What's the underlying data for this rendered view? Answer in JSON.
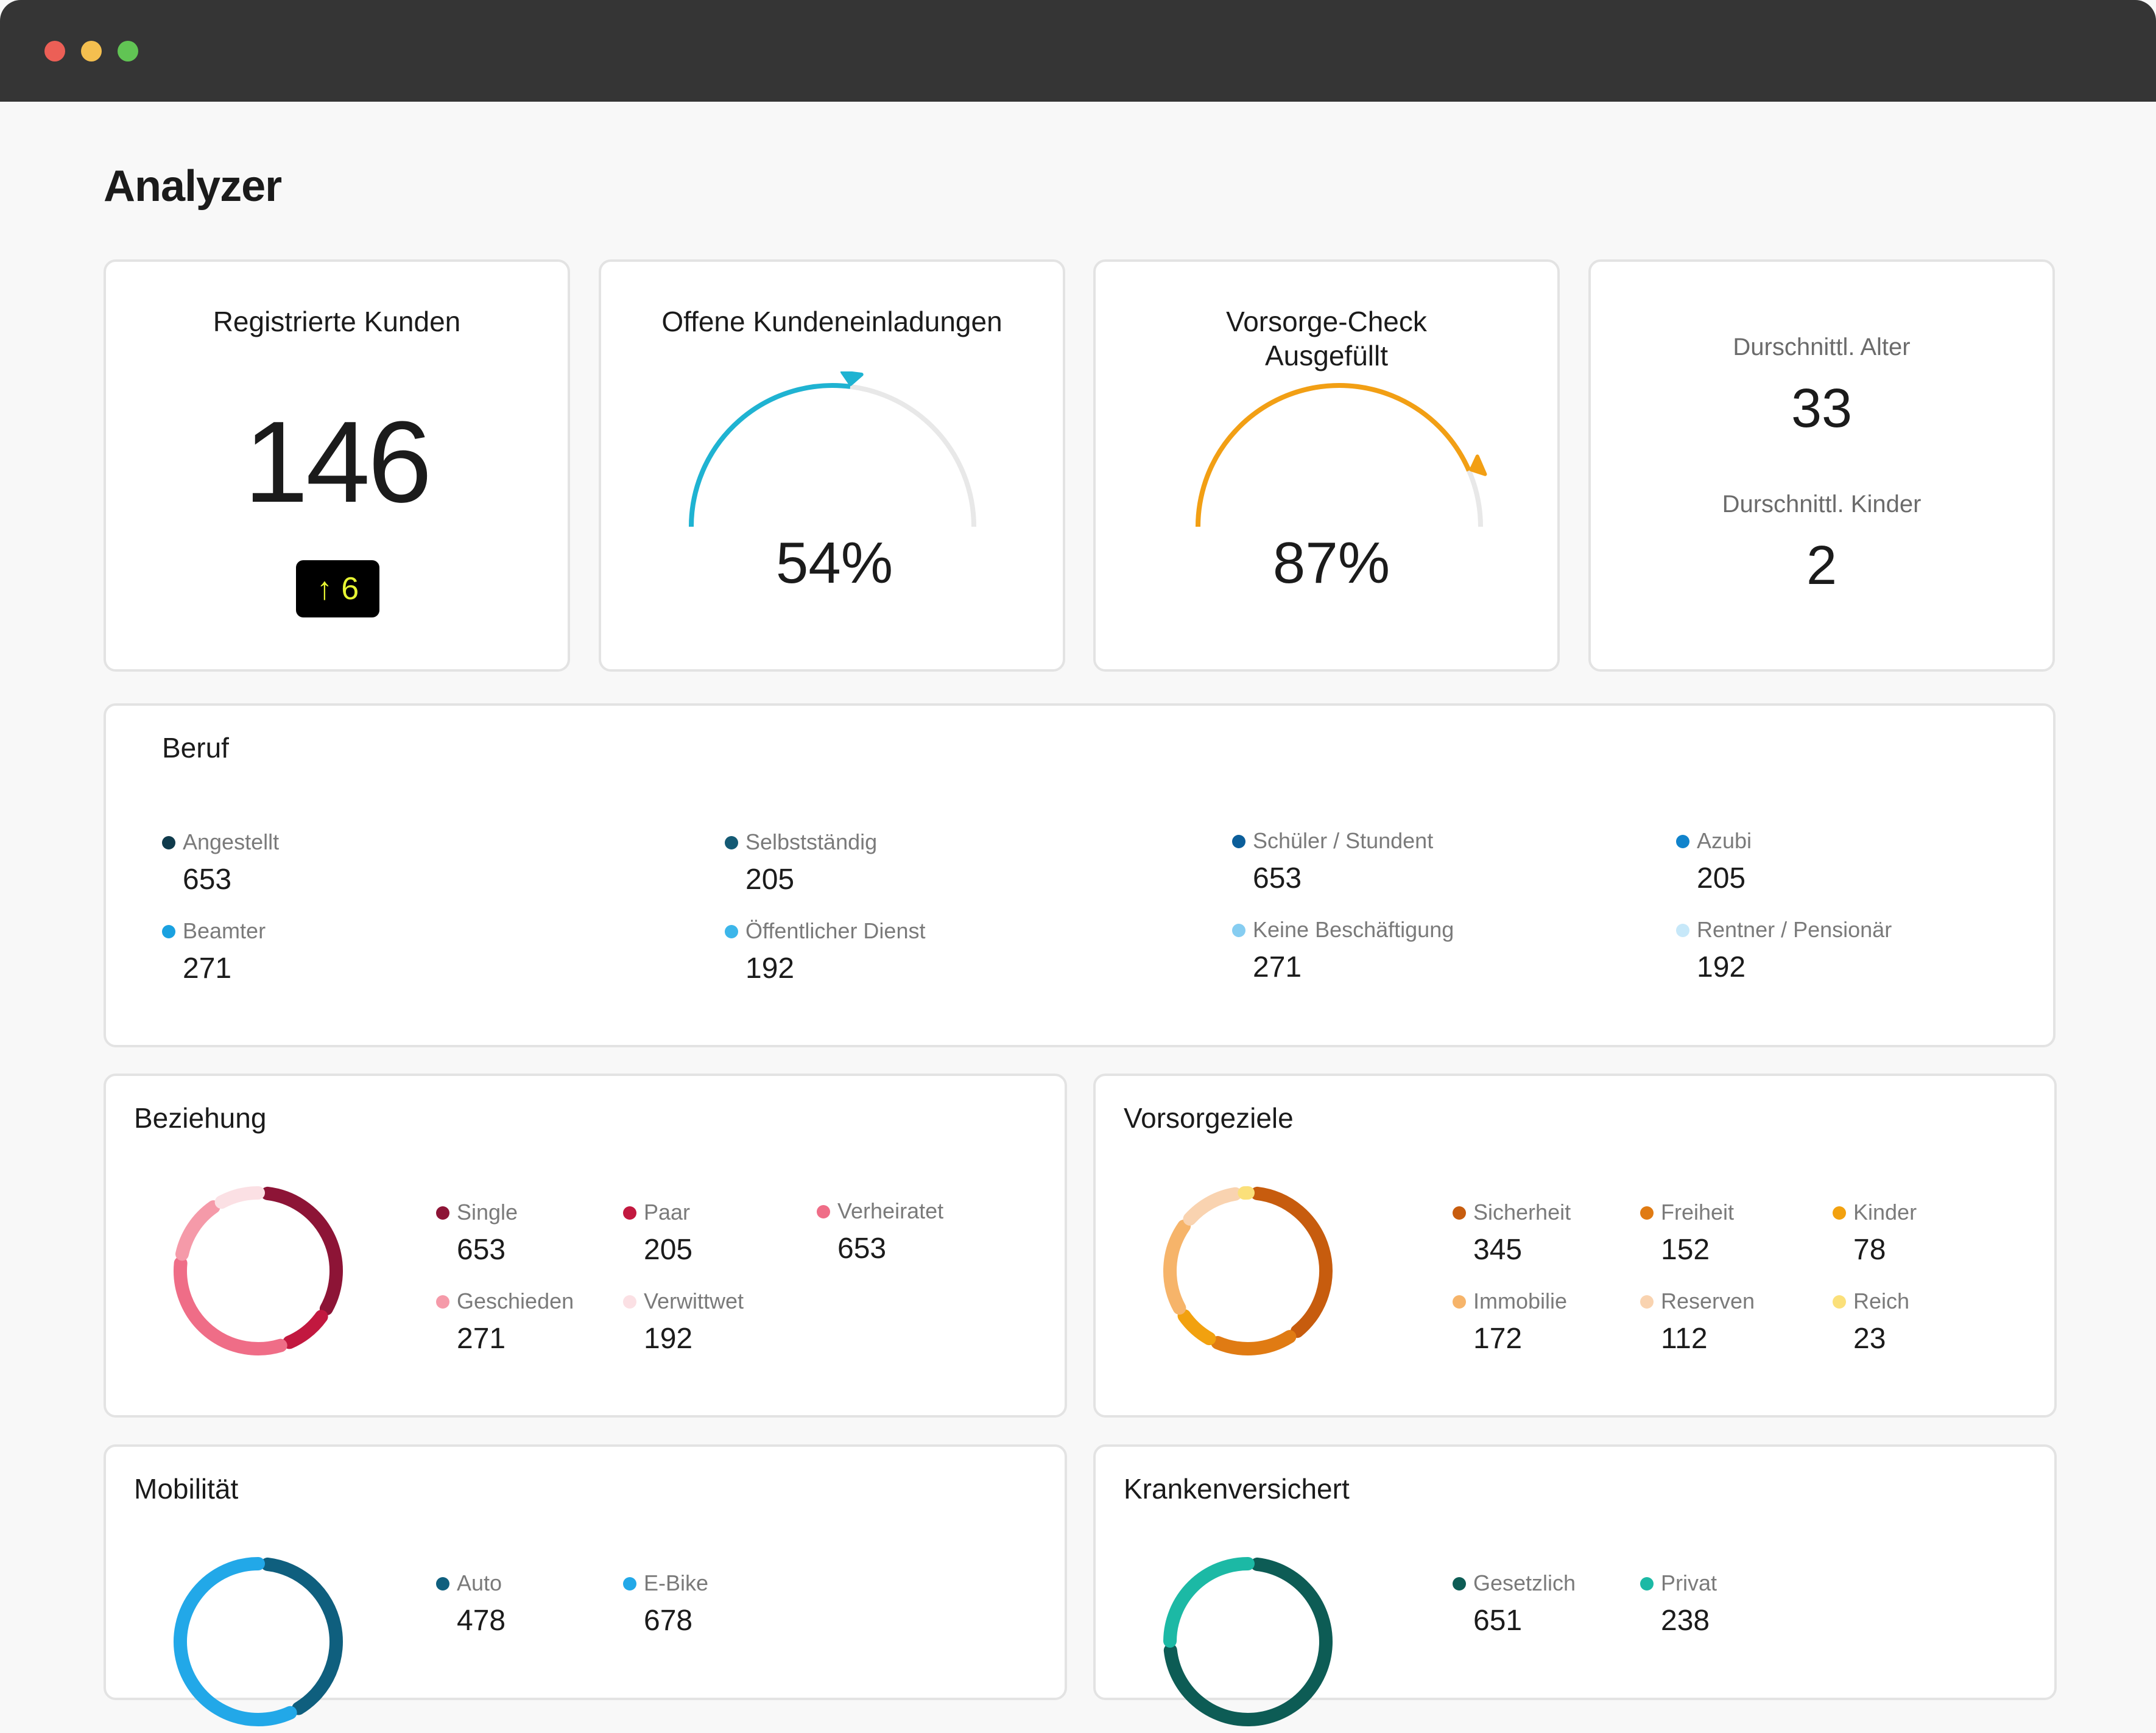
{
  "window": {
    "controls": [
      "close",
      "minimize",
      "maximize"
    ],
    "colors": {
      "close": "#ec5f56",
      "minimize": "#f4bf4f",
      "maximize": "#61c454"
    }
  },
  "page": {
    "title": "Analyzer"
  },
  "kpis": {
    "registered": {
      "title": "Registrierte Kunden",
      "value": "146",
      "delta_arrow": "↑",
      "delta": "6"
    },
    "invitations": {
      "title": "Offene Kundeneinladungen",
      "value": "54%",
      "percent": 54,
      "color": "#1fb3d2"
    },
    "check": {
      "title_line1": "Vorsorge-Check",
      "title_line2": "Ausgefüllt",
      "value": "87%",
      "percent": 87,
      "color": "#f29f14"
    },
    "averages": {
      "age_label": "Durschnittl. Alter",
      "age_value": "33",
      "kids_label": "Durschnittl. Kinder",
      "kids_value": "2"
    }
  },
  "beruf": {
    "title": "Beruf",
    "items": [
      {
        "label": "Angestellt",
        "value": "653",
        "color": "#0f3b4c"
      },
      {
        "label": "Selbstständig",
        "value": "205",
        "color": "#145a74"
      },
      {
        "label": "Schüler / Stundent",
        "value": "653",
        "color": "#0b5e9a"
      },
      {
        "label": "Azubi",
        "value": "205",
        "color": "#1083cc"
      },
      {
        "label": "Beamter",
        "value": "271",
        "color": "#1aa1e0"
      },
      {
        "label": "Öffentlicher Dienst",
        "value": "192",
        "color": "#3cb6ea"
      },
      {
        "label": "Keine Beschäftigung",
        "value": "271",
        "color": "#86cdf1"
      },
      {
        "label": "Rentner / Pensionär",
        "value": "192",
        "color": "#c7e8f9"
      }
    ]
  },
  "beziehung": {
    "title": "Beziehung",
    "items": [
      {
        "label": "Single",
        "value": "653",
        "color": "#8d1436"
      },
      {
        "label": "Paar",
        "value": "205",
        "color": "#c2183f"
      },
      {
        "label": "Verheiratet",
        "value": "653",
        "color": "#ef6d87"
      },
      {
        "label": "Geschieden",
        "value": "271",
        "color": "#f59aa9"
      },
      {
        "label": "Verwittwet",
        "value": "192",
        "color": "#fbe0e4"
      }
    ]
  },
  "vorsorgeziele": {
    "title": "Vorsorgeziele",
    "items": [
      {
        "label": "Sicherheit",
        "value": "345",
        "color": "#c75c0e"
      },
      {
        "label": "Freiheit",
        "value": "152",
        "color": "#e07b13"
      },
      {
        "label": "Kinder",
        "value": "78",
        "color": "#f2a10f"
      },
      {
        "label": "Immobilie",
        "value": "172",
        "color": "#f6b46a"
      },
      {
        "label": "Reserven",
        "value": "112",
        "color": "#f9d3b0"
      },
      {
        "label": "Reich",
        "value": "23",
        "color": "#fbe07a"
      }
    ]
  },
  "mobilitaet": {
    "title": "Mobilität",
    "items": [
      {
        "label": "Auto",
        "value": "478",
        "color": "#0f5f7e"
      },
      {
        "label": "E-Bike",
        "value": "678",
        "color": "#22a8e8"
      }
    ]
  },
  "kranken": {
    "title": "Krankenversichert",
    "items": [
      {
        "label": "Gesetzlich",
        "value": "651",
        "color": "#0d5c55"
      },
      {
        "label": "Privat",
        "value": "238",
        "color": "#1cb9a5"
      }
    ]
  }
}
